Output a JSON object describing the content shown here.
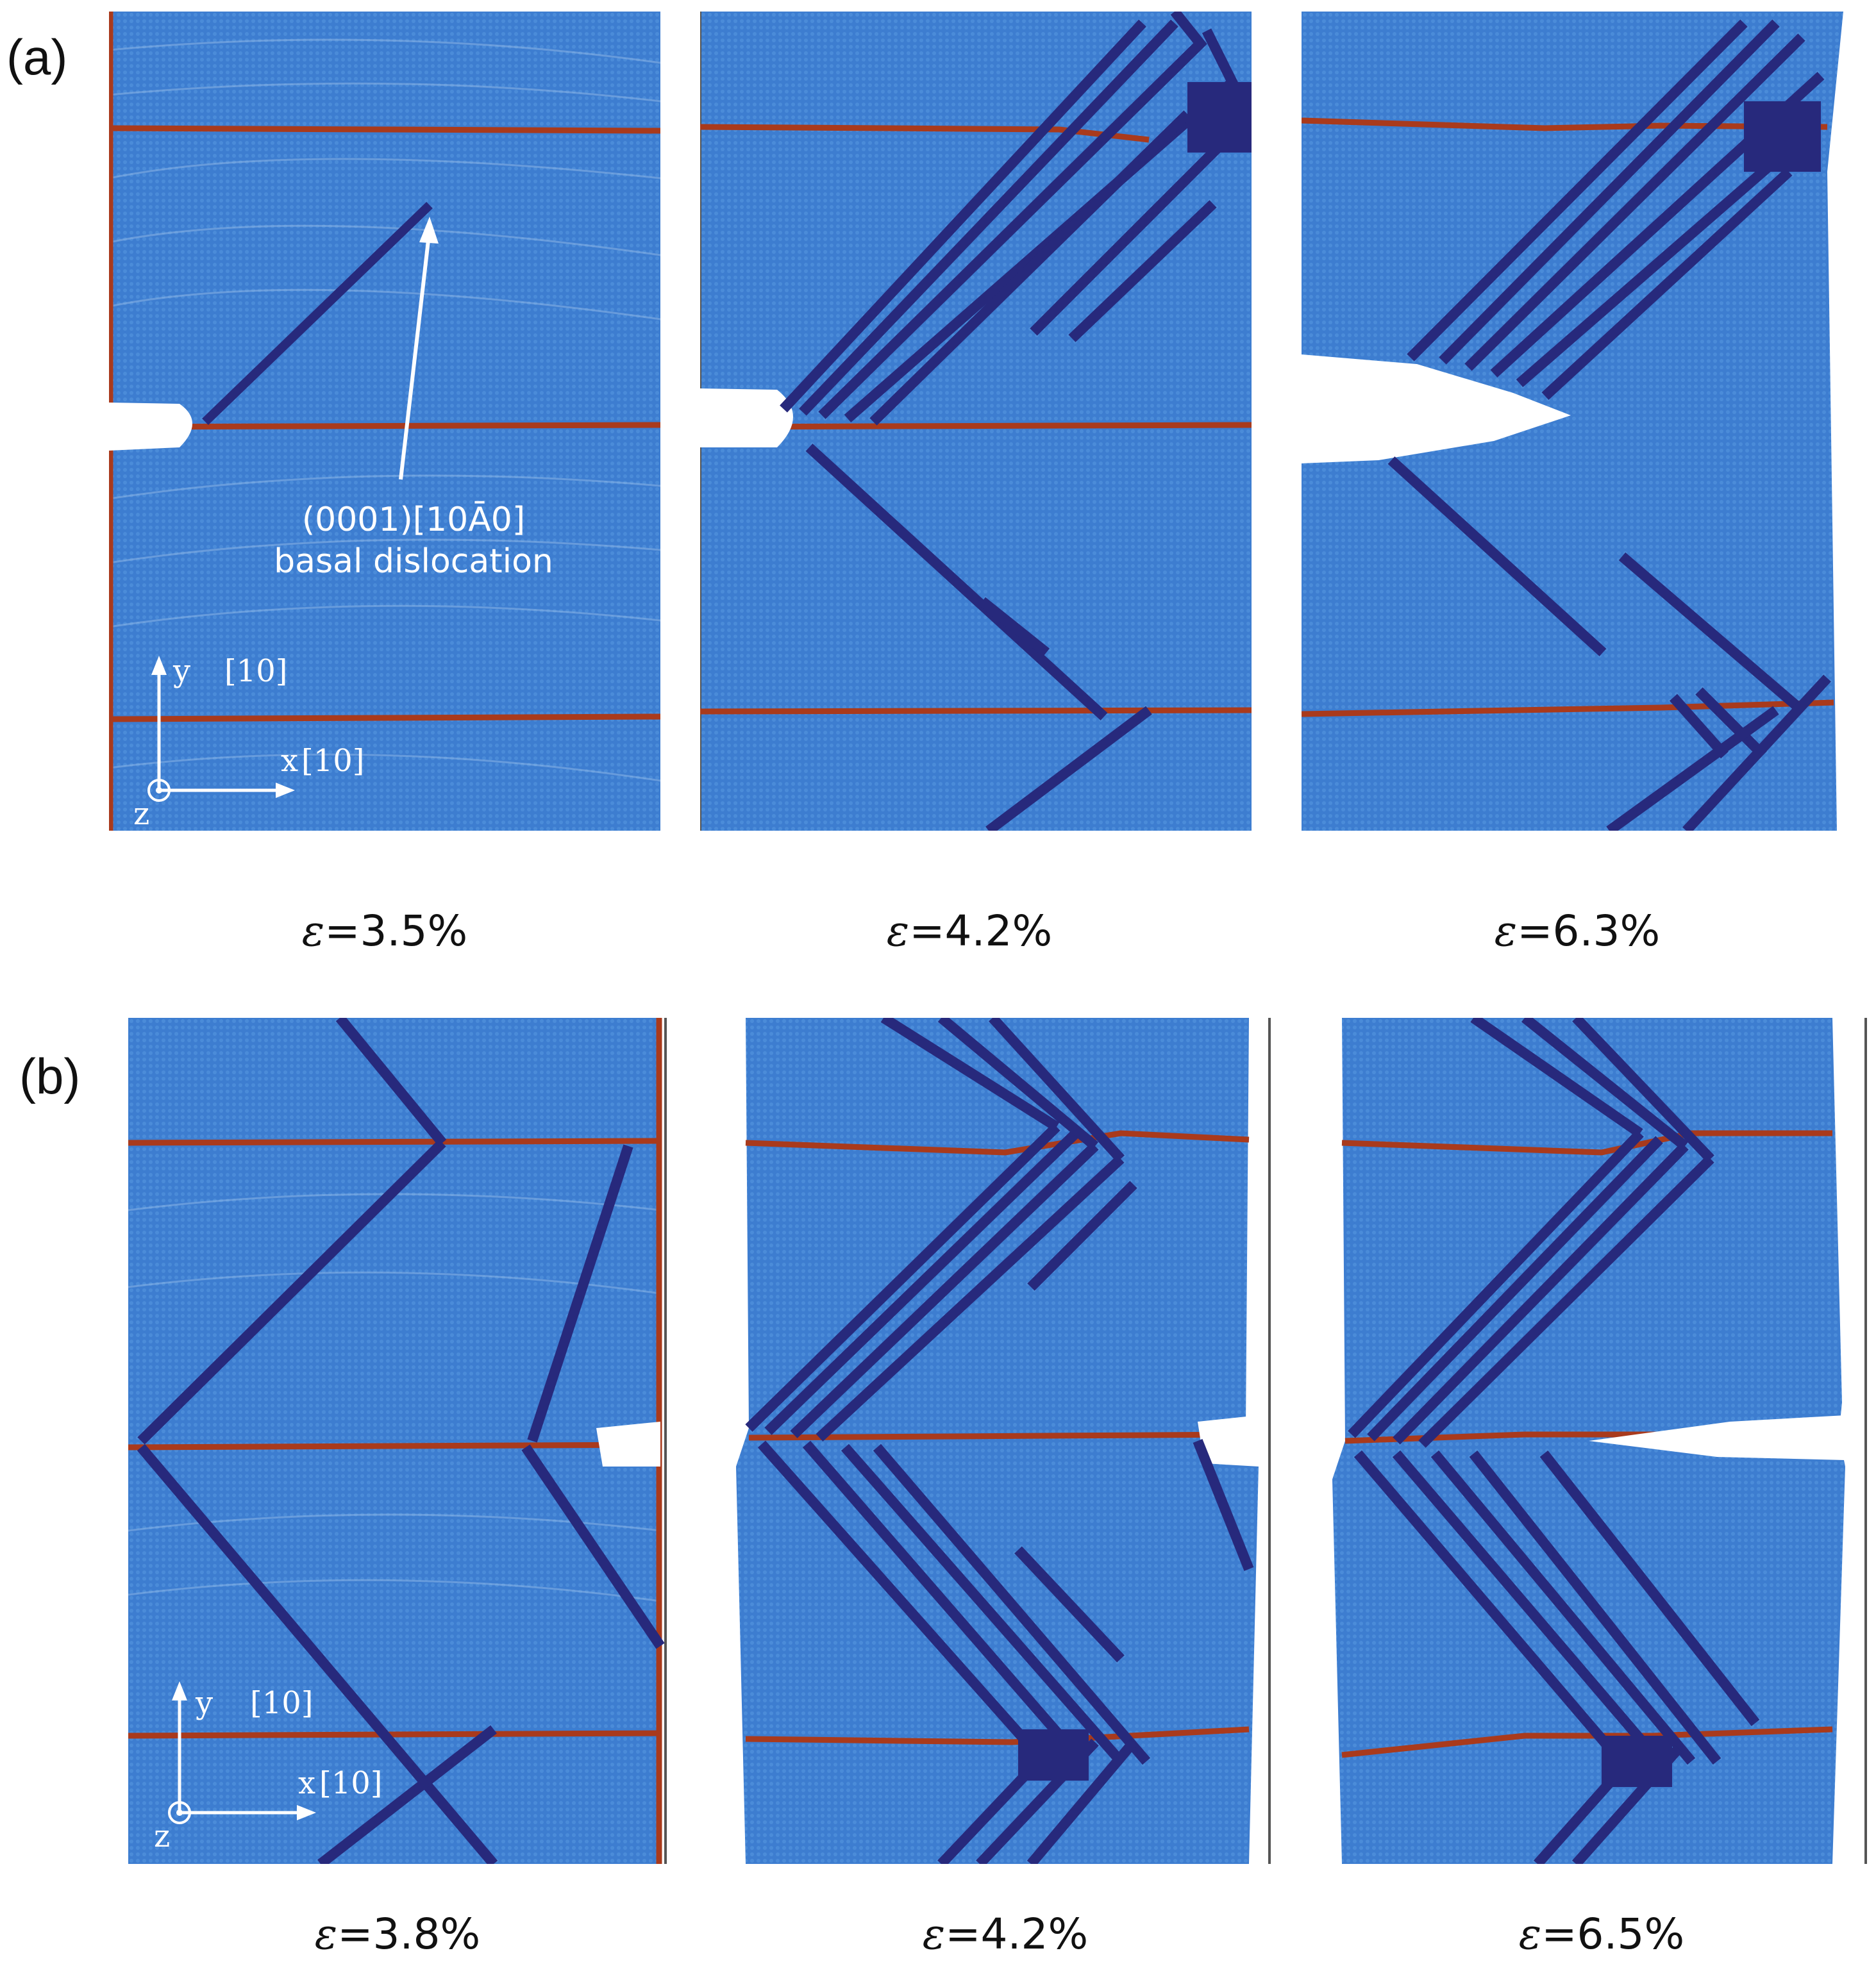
{
  "figure": {
    "row_a": {
      "label": "(a)",
      "panels": [
        {
          "strain_symbol": "ε",
          "strain_value": "=3.5%"
        },
        {
          "strain_symbol": "ε",
          "strain_value": "=4.2%"
        },
        {
          "strain_symbol": "ε",
          "strain_value": "=6.3%"
        }
      ],
      "annotation": {
        "line1": "(0001)[10Ā0]",
        "line2": "basal dislocation"
      }
    },
    "row_b": {
      "label": "(b)",
      "panels": [
        {
          "strain_symbol": "ε",
          "strain_value": "=3.8%"
        },
        {
          "strain_symbol": "ε",
          "strain_value": "=4.2%"
        },
        {
          "strain_symbol": "ε",
          "strain_value": "=6.5%"
        }
      ]
    },
    "axes": {
      "y_label": "y",
      "y_direction": "[10\u0012]",
      "x_label": "x",
      "x_direction": "[10\u0011]",
      "z_label": "z"
    },
    "colors": {
      "crystal": "#3d7dd0",
      "twin_band": "#27297c",
      "boundary": "#a93a1c",
      "background": "#ffffff"
    }
  }
}
